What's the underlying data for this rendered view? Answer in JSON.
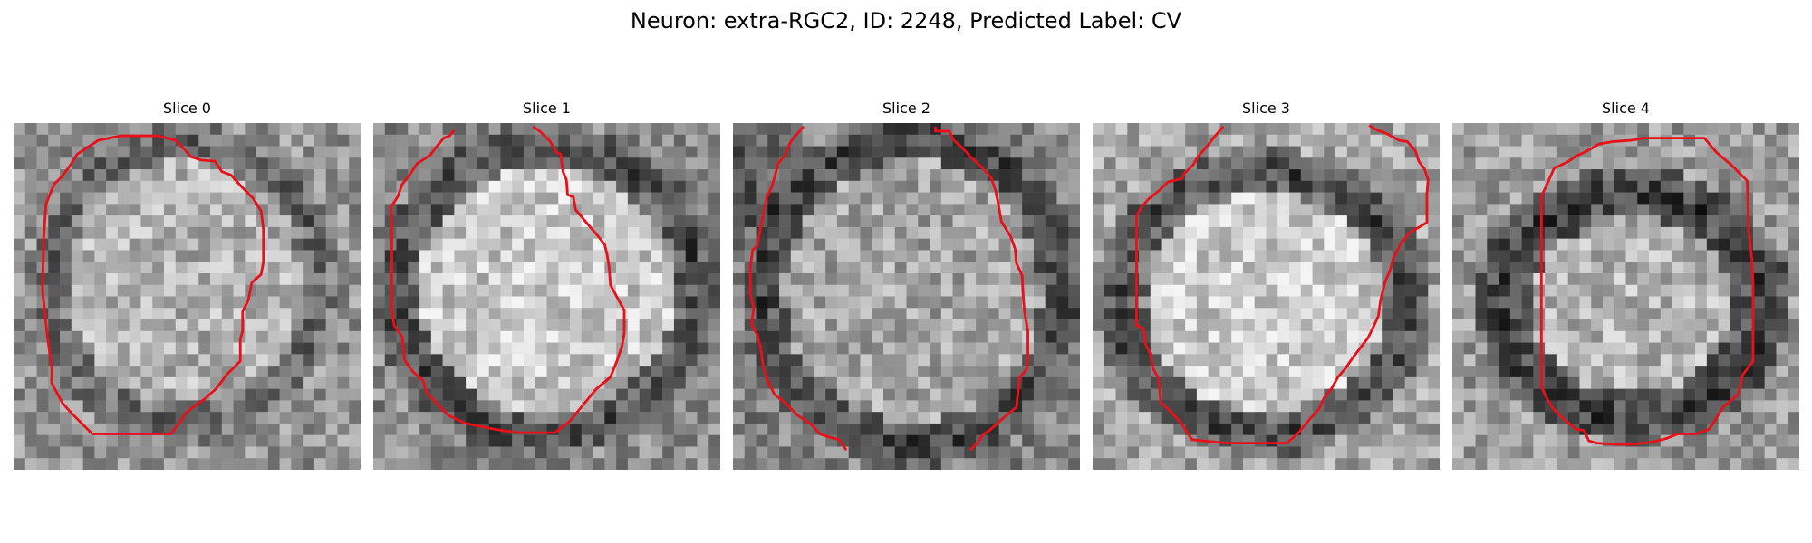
{
  "figure": {
    "title": "Neuron: extra-RGC2, ID: 2248, Predicted Label: CV",
    "contour_color": "#e8111a",
    "colormap": "gray",
    "slices": [
      {
        "label": "Slice 0"
      },
      {
        "label": "Slice 1"
      },
      {
        "label": "Slice 2"
      },
      {
        "label": "Slice 3"
      },
      {
        "label": "Slice 4"
      }
    ]
  }
}
